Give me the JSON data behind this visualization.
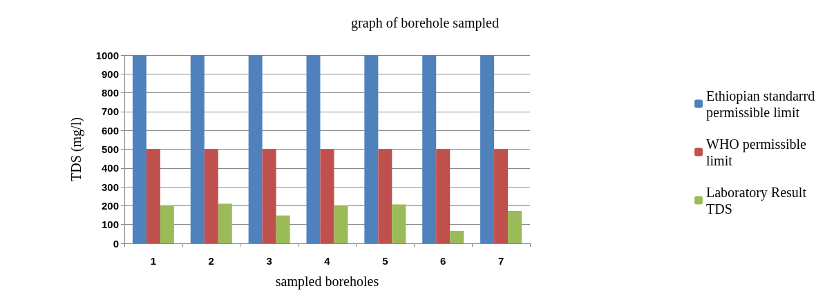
{
  "chart_data": {
    "type": "bar",
    "title": "graph of borehole sampled",
    "xlabel": "sampled boreholes",
    "ylabel": "TDS (mg/l)",
    "categories": [
      "1",
      "2",
      "3",
      "4",
      "5",
      "6",
      "7"
    ],
    "series": [
      {
        "name": "Ethiopian standarrd permissible limit",
        "color": "#4f81bd",
        "values": [
          1000,
          1000,
          1000,
          1000,
          1000,
          1000,
          1000
        ]
      },
      {
        "name": "WHO permissible limit",
        "color": "#c0504d",
        "values": [
          500,
          500,
          500,
          500,
          500,
          500,
          500
        ]
      },
      {
        "name": "Laboratory Result TDS",
        "color": "#9bbb59",
        "values": [
          202,
          211,
          148,
          202,
          207,
          66,
          172
        ]
      }
    ],
    "ylim": [
      0,
      1000
    ],
    "yticks": [
      0,
      100,
      200,
      300,
      400,
      500,
      600,
      700,
      800,
      900,
      1000
    ],
    "grid": "y",
    "legend": "right"
  }
}
